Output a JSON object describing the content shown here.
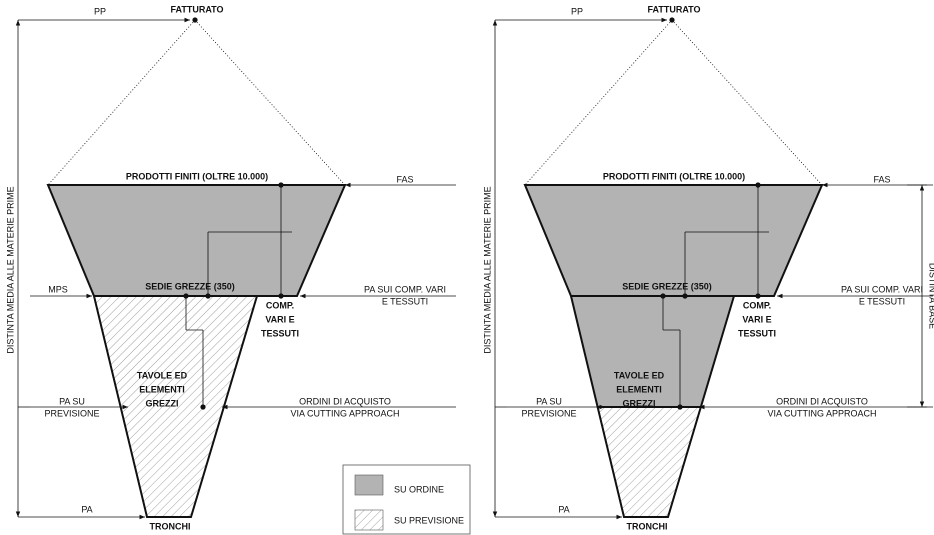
{
  "panels": [
    {
      "pp": "PP",
      "top_label": "FATTURATO",
      "finished": "PRODOTTI FINITI (OLTRE 10.000)",
      "fas": "FAS",
      "mps": "MPS",
      "semi": "SEDIE GREZZE (350)",
      "pa_comp": [
        "PA SUI COMP. VARI",
        "E TESSUTI"
      ],
      "comp": [
        "COMP.",
        "VARI E",
        "TESSUTI"
      ],
      "tavole": [
        "TAVOLE ED",
        "ELEMENTI",
        "GREZZI"
      ],
      "pa_prev": [
        "PA SU",
        "PREVISIONE"
      ],
      "ordini": [
        "ORDINI DI ACQUISTO",
        "VIA CUTTING APPROACH"
      ],
      "pa": "PA",
      "tronchi": "TRONCHI",
      "axis_label": "DISTINTA MEDIA ALLE MATERIE PRIME"
    },
    {
      "pp": "PP",
      "top_label": "FATTURATO",
      "finished": "PRODOTTI FINITI (OLTRE 10.000)",
      "fas": "FAS",
      "semi": "SEDIE GREZZE (350)",
      "pa_comp": [
        "PA SUI COMP. VARI",
        "E TESSUTI"
      ],
      "comp": [
        "COMP.",
        "VARI E",
        "TESSUTI"
      ],
      "tavole": [
        "TAVOLE ED",
        "ELEMENTI",
        "GREZZI"
      ],
      "pa_prev": [
        "PA SU",
        "PREVISIONE"
      ],
      "ordini": [
        "ORDINI DI ACQUISTO",
        "VIA CUTTING APPROACH"
      ],
      "pa": "PA",
      "tronchi": "TRONCHI",
      "axis_label": "DISTINTA MEDIA ALLE MATERIE PRIME",
      "side_label": "DISTINTA BASE"
    }
  ],
  "legend": [
    {
      "label": "SU ORDINE"
    },
    {
      "label": "SU PREVISIONE"
    }
  ]
}
